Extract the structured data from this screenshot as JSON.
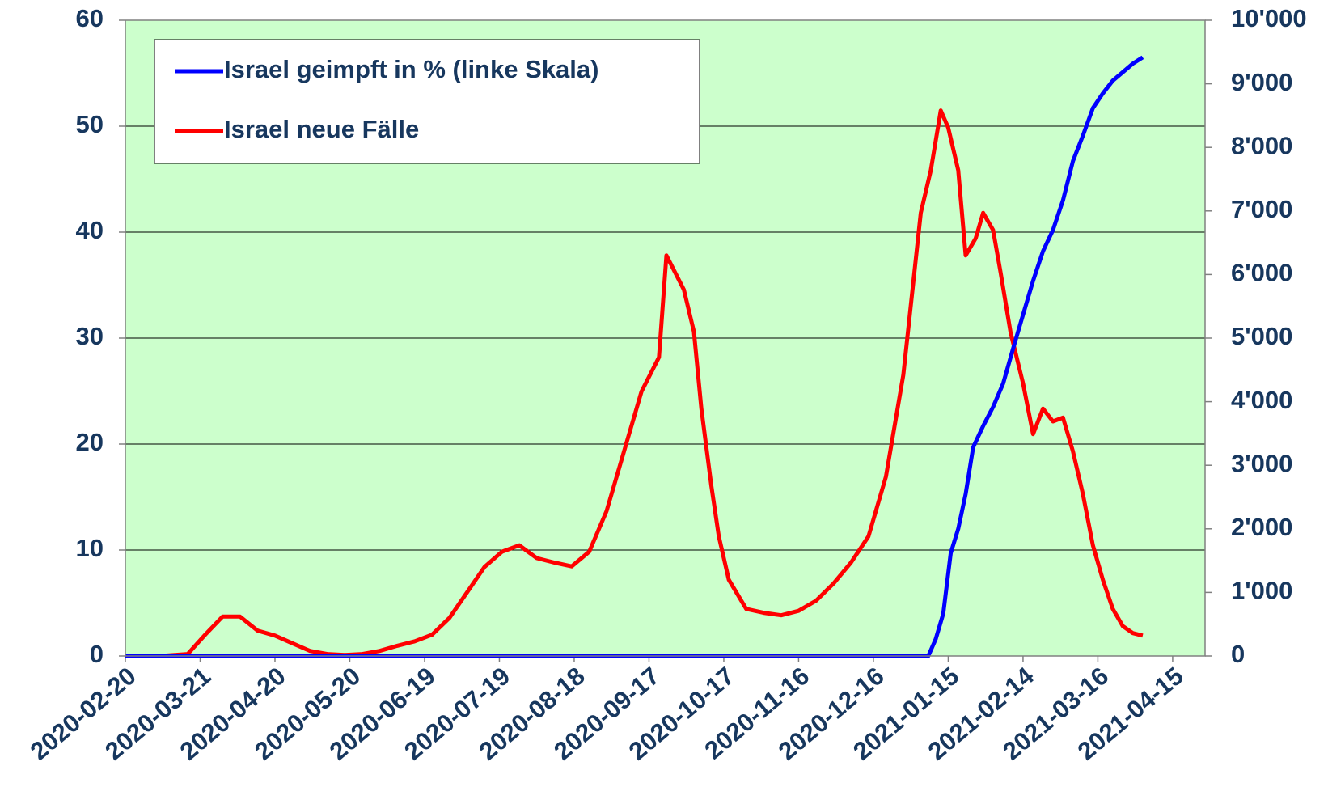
{
  "chart_data": {
    "type": "line",
    "xlim": [
      "2020-02-20",
      "2021-04-28"
    ],
    "xticks": [
      "2020-02-20",
      "2020-03-21",
      "2020-04-20",
      "2020-05-20",
      "2020-06-19",
      "2020-07-19",
      "2020-08-18",
      "2020-09-17",
      "2020-10-17",
      "2020-11-16",
      "2020-12-16",
      "2021-01-15",
      "2021-02-14",
      "2021-03-16",
      "2021-04-15"
    ],
    "ylim": [
      0,
      60
    ],
    "yticks": [
      0,
      10,
      20,
      30,
      40,
      50,
      60
    ],
    "y2lim": [
      0,
      10000
    ],
    "y2ticks": [
      0,
      {
        "value": 1000,
        "label": "1'000"
      },
      {
        "value": 2000,
        "label": "2'000"
      },
      {
        "value": 3000,
        "label": "3'000"
      },
      {
        "value": 4000,
        "label": "4'000"
      },
      {
        "value": 5000,
        "label": "5'000"
      },
      {
        "value": 6000,
        "label": "6'000"
      },
      {
        "value": 7000,
        "label": "7'000"
      },
      {
        "value": 8000,
        "label": "8'000"
      },
      {
        "value": 9000,
        "label": "9'000"
      },
      {
        "value": 10000,
        "label": "10'000"
      }
    ],
    "grid": true,
    "legend": "upper left",
    "series": [
      {
        "name": "Israel geimpft in % (linke Skala)",
        "color": "#0000ff",
        "x": [
          "2020-02-20",
          "2021-01-07",
          "2021-01-10",
          "2021-01-13",
          "2021-01-16",
          "2021-01-19",
          "2021-01-22",
          "2021-01-25",
          "2021-01-29",
          "2021-02-02",
          "2021-02-06",
          "2021-02-10",
          "2021-02-14",
          "2021-02-18",
          "2021-02-22",
          "2021-02-26",
          "2021-03-02",
          "2021-03-06",
          "2021-03-10",
          "2021-03-14",
          "2021-03-18",
          "2021-03-22",
          "2021-03-26",
          "2021-03-30",
          "2021-04-03"
        ],
        "values": [
          0,
          0,
          1.6,
          4.0,
          9.7,
          12,
          15.3,
          19.7,
          21.7,
          23.5,
          25.7,
          29,
          32.2,
          35.4,
          38.2,
          40.2,
          43,
          46.7,
          49.1,
          51.7,
          53.1,
          54.3,
          55.1,
          55.9,
          56.5
        ]
      },
      {
        "name": "Israel neue Fälle",
        "color": "#ff0000",
        "axis": "y2",
        "x": [
          "2020-02-20",
          "2020-03-05",
          "2020-03-16",
          "2020-03-23",
          "2020-03-30",
          "2020-04-06",
          "2020-04-13",
          "2020-04-20",
          "2020-04-27",
          "2020-05-04",
          "2020-05-11",
          "2020-05-18",
          "2020-05-25",
          "2020-06-01",
          "2020-06-08",
          "2020-06-15",
          "2020-06-22",
          "2020-06-29",
          "2020-07-06",
          "2020-07-13",
          "2020-07-20",
          "2020-07-27",
          "2020-08-03",
          "2020-08-10",
          "2020-08-17",
          "2020-08-24",
          "2020-08-31",
          "2020-09-07",
          "2020-09-14",
          "2020-09-21",
          "2020-09-24",
          "2020-10-01",
          "2020-10-05",
          "2020-10-08",
          "2020-10-12",
          "2020-10-15",
          "2020-10-19",
          "2020-10-26",
          "2020-11-02",
          "2020-11-09",
          "2020-11-16",
          "2020-11-23",
          "2020-11-30",
          "2020-12-07",
          "2020-12-14",
          "2020-12-21",
          "2020-12-28",
          "2021-01-04",
          "2021-01-08",
          "2021-01-12",
          "2021-01-15",
          "2021-01-19",
          "2021-01-22",
          "2021-01-26",
          "2021-01-29",
          "2021-02-02",
          "2021-02-05",
          "2021-02-09",
          "2021-02-14",
          "2021-02-18",
          "2021-02-22",
          "2021-02-26",
          "2021-03-02",
          "2021-03-06",
          "2021-03-10",
          "2021-03-14",
          "2021-03-18",
          "2021-03-22",
          "2021-03-26",
          "2021-03-30",
          "2021-04-03"
        ],
        "values": [
          0,
          0,
          30,
          335,
          620,
          620,
          400,
          320,
          200,
          80,
          30,
          15,
          30,
          80,
          160,
          230,
          335,
          600,
          1000,
          1400,
          1640,
          1740,
          1540,
          1470,
          1410,
          1640,
          2280,
          3220,
          4160,
          4700,
          6300,
          5760,
          5100,
          3890,
          2680,
          1880,
          1200,
          740,
          680,
          640,
          710,
          870,
          1140,
          1470,
          1880,
          2820,
          4420,
          6970,
          7640,
          8580,
          8310,
          7640,
          6300,
          6570,
          6970,
          6700,
          6030,
          5090,
          4290,
          3490,
          3890,
          3690,
          3750,
          3220,
          2550,
          1740,
          1200,
          740,
          470,
          360,
          320
        ]
      }
    ]
  }
}
